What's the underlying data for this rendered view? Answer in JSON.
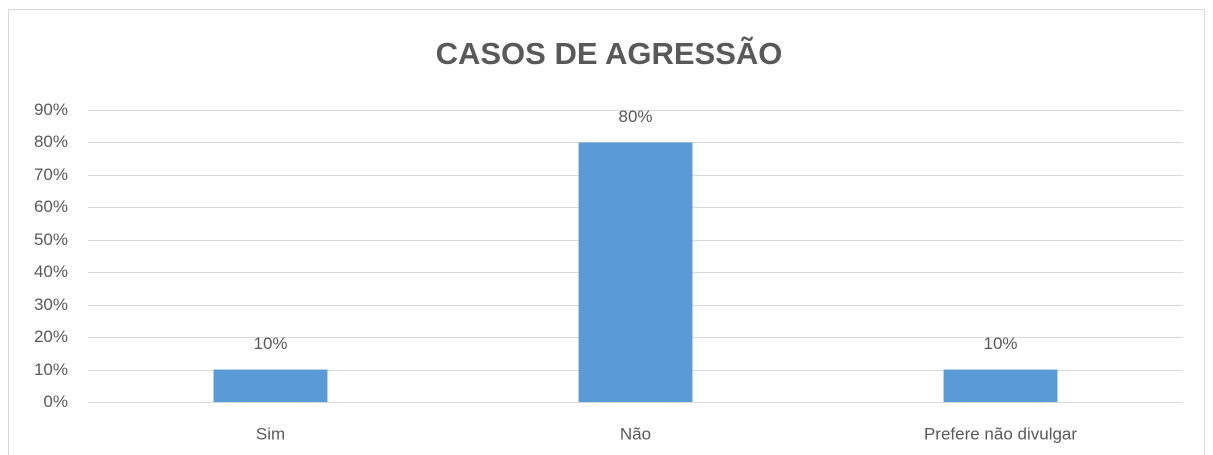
{
  "chart_data": {
    "type": "bar",
    "title": "CASOS DE AGRESSÃO",
    "categories": [
      "Sim",
      "Não",
      "Prefere não divulgar"
    ],
    "values": [
      10,
      80,
      10
    ],
    "value_labels": [
      "10%",
      "80%",
      "10%"
    ],
    "color": "#5b9bd5",
    "ylim": [
      0,
      90
    ],
    "yticks": [
      {
        "value": 0,
        "label": "0%"
      },
      {
        "value": 10,
        "label": "10%"
      },
      {
        "value": 20,
        "label": "20%"
      },
      {
        "value": 30,
        "label": "30%"
      },
      {
        "value": 40,
        "label": "40%"
      },
      {
        "value": 50,
        "label": "50%"
      },
      {
        "value": 60,
        "label": "60%"
      },
      {
        "value": 70,
        "label": "70%"
      },
      {
        "value": 80,
        "label": "80%"
      },
      {
        "value": 90,
        "label": "90%"
      }
    ],
    "grid": true
  }
}
